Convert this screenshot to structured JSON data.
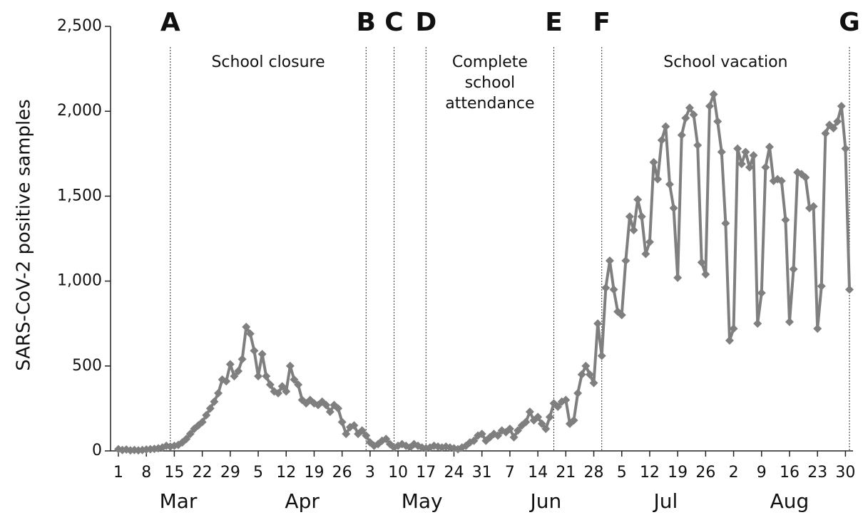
{
  "chart_data": {
    "type": "line",
    "y_label": "SARS-CoV-2 positive samples",
    "color": "#7f7f7f",
    "marker": "diamond",
    "ylim": [
      0,
      2500
    ],
    "yticks": [
      0,
      500,
      {
        "value": 1000,
        "label": "1,000"
      },
      {
        "value": 1500,
        "label": "1,500"
      },
      {
        "value": 2000,
        "label": "2,000"
      },
      {
        "value": 2500,
        "label": "2,500"
      }
    ],
    "xlim": [
      0,
      183
    ],
    "xticks": [
      {
        "value": 0,
        "label": "1"
      },
      {
        "value": 7,
        "label": "8"
      },
      {
        "value": 14,
        "label": "15"
      },
      {
        "value": 21,
        "label": "22"
      },
      {
        "value": 28,
        "label": "29"
      },
      {
        "value": 35,
        "label": "5"
      },
      {
        "value": 42,
        "label": "12"
      },
      {
        "value": 49,
        "label": "19"
      },
      {
        "value": 56,
        "label": "26"
      },
      {
        "value": 63,
        "label": "3"
      },
      {
        "value": 70,
        "label": "10"
      },
      {
        "value": 77,
        "label": "17"
      },
      {
        "value": 84,
        "label": "24"
      },
      {
        "value": 91,
        "label": "31"
      },
      {
        "value": 98,
        "label": "7"
      },
      {
        "value": 105,
        "label": "14"
      },
      {
        "value": 112,
        "label": "21"
      },
      {
        "value": 119,
        "label": "28"
      },
      {
        "value": 126,
        "label": "5"
      },
      {
        "value": 133,
        "label": "12"
      },
      {
        "value": 140,
        "label": "19"
      },
      {
        "value": 147,
        "label": "26"
      },
      {
        "value": 154,
        "label": "2"
      },
      {
        "value": 161,
        "label": "9"
      },
      {
        "value": 168,
        "label": "16"
      },
      {
        "value": 175,
        "label": "23"
      },
      {
        "value": 182,
        "label": "30"
      }
    ],
    "months": [
      "Mar",
      "Apr",
      "May",
      "Jun",
      "Jul",
      "Aug"
    ],
    "events": [
      {
        "label": "A",
        "x": 13,
        "period": [
          "School closure"
        ]
      },
      {
        "label": "B",
        "x": 62
      },
      {
        "label": "C",
        "x": 69
      },
      {
        "label": "D",
        "x": 77,
        "period": [
          "Complete",
          "school",
          "attendance"
        ]
      },
      {
        "label": "E",
        "x": 109
      },
      {
        "label": "F",
        "x": 121,
        "period": [
          "School vacation"
        ]
      },
      {
        "label": "G",
        "x": 183
      }
    ],
    "values": [
      10,
      5,
      8,
      3,
      5,
      3,
      5,
      8,
      10,
      12,
      15,
      20,
      30,
      25,
      30,
      35,
      50,
      70,
      100,
      130,
      150,
      170,
      210,
      250,
      290,
      340,
      420,
      410,
      510,
      440,
      470,
      540,
      730,
      690,
      590,
      440,
      570,
      440,
      390,
      350,
      340,
      380,
      350,
      500,
      420,
      390,
      300,
      280,
      300,
      280,
      270,
      290,
      270,
      230,
      270,
      250,
      170,
      100,
      140,
      150,
      100,
      120,
      90,
      50,
      30,
      40,
      60,
      70,
      40,
      20,
      30,
      40,
      30,
      20,
      40,
      30,
      20,
      15,
      20,
      30,
      25,
      20,
      25,
      20,
      15,
      10,
      20,
      30,
      50,
      60,
      90,
      100,
      60,
      80,
      100,
      90,
      120,
      110,
      130,
      80,
      120,
      150,
      170,
      230,
      180,
      200,
      160,
      130,
      200,
      280,
      260,
      290,
      300,
      160,
      180,
      340,
      450,
      500,
      450,
      400,
      750,
      560,
      960,
      1120,
      950,
      820,
      800,
      1120,
      1380,
      1300,
      1480,
      1380,
      1160,
      1230,
      1700,
      1600,
      1830,
      1910,
      1570,
      1430,
      1020,
      1860,
      1960,
      2020,
      1980,
      1800,
      1110,
      1040,
      2030,
      2100,
      1940,
      1760,
      1340,
      650,
      720,
      1780,
      1690,
      1760,
      1670,
      1740,
      750,
      930,
      1670,
      1790,
      1590,
      1600,
      1590,
      1360,
      760,
      1070,
      1640,
      1630,
      1610,
      1430,
      1440,
      720,
      970,
      1870,
      1920,
      1900,
      1940,
      2030,
      1780,
      950
    ]
  }
}
